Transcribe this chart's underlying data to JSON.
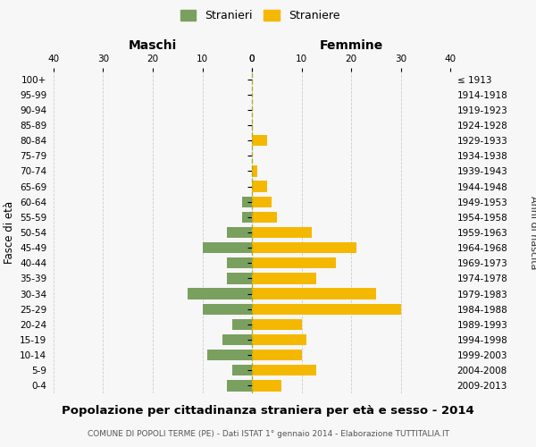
{
  "age_groups": [
    "100+",
    "95-99",
    "90-94",
    "85-89",
    "80-84",
    "75-79",
    "70-74",
    "65-69",
    "60-64",
    "55-59",
    "50-54",
    "45-49",
    "40-44",
    "35-39",
    "30-34",
    "25-29",
    "20-24",
    "15-19",
    "10-14",
    "5-9",
    "0-4"
  ],
  "birth_years": [
    "≤ 1913",
    "1914-1918",
    "1919-1923",
    "1924-1928",
    "1929-1933",
    "1934-1938",
    "1939-1943",
    "1944-1948",
    "1949-1953",
    "1954-1958",
    "1959-1963",
    "1964-1968",
    "1969-1973",
    "1974-1978",
    "1979-1983",
    "1984-1988",
    "1989-1993",
    "1994-1998",
    "1999-2003",
    "2004-2008",
    "2009-2013"
  ],
  "maschi": [
    0,
    0,
    0,
    0,
    0,
    0,
    0,
    0,
    2,
    2,
    5,
    10,
    5,
    5,
    13,
    10,
    4,
    6,
    9,
    4,
    5
  ],
  "femmine": [
    0,
    0,
    0,
    0,
    3,
    0,
    1,
    3,
    4,
    5,
    12,
    21,
    17,
    13,
    25,
    30,
    10,
    11,
    10,
    13,
    6
  ],
  "color_maschi": "#7aa060",
  "color_femmine": "#f5b800",
  "title": "Popolazione per cittadinanza straniera per età e sesso - 2014",
  "subtitle": "COMUNE DI POPOLI TERME (PE) - Dati ISTAT 1° gennaio 2014 - Elaborazione TUTTITALIA.IT",
  "legend_maschi": "Stranieri",
  "legend_femmine": "Straniere",
  "xlabel_maschi": "Maschi",
  "xlabel_femmine": "Femmine",
  "ylabel_left": "Fasce di età",
  "ylabel_right": "Anni di nascita",
  "xlim": 40,
  "background_color": "#f7f7f7",
  "grid_color": "#cccccc"
}
